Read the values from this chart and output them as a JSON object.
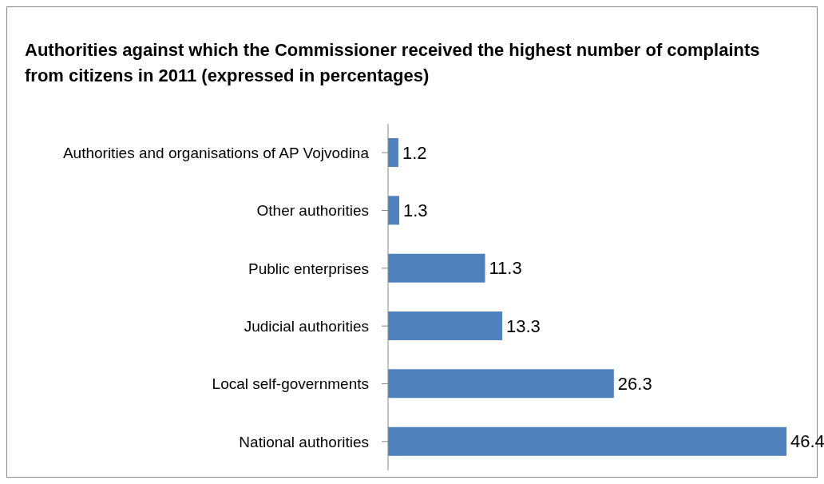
{
  "chart_data": {
    "type": "bar",
    "orientation": "horizontal",
    "title": "Authorities against which the Commissioner received the highest number of complaints from citizens in 2011 (expressed in percentages)",
    "categories": [
      "Authorities and organisations of AP Vojvodina",
      "Other authorities",
      "Public enterprises",
      "Judicial authorities",
      "Local self-governments",
      "National authorities"
    ],
    "values": [
      1.2,
      1.3,
      11.3,
      13.3,
      26.3,
      46.4
    ],
    "color": "#4f81bd",
    "data_labels": true,
    "tick_labels": "y"
  }
}
